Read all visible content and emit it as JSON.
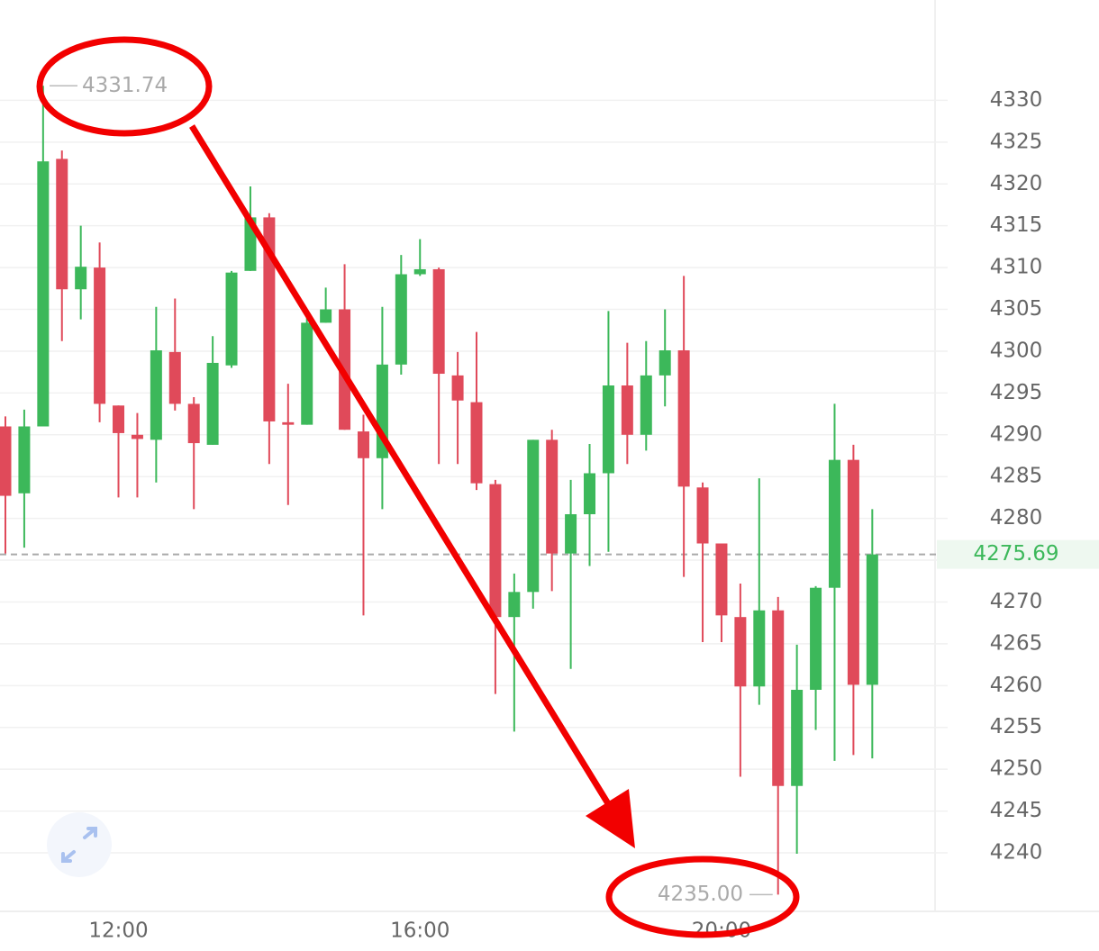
{
  "chart_data": {
    "type": "candlestick",
    "categories": [
      null,
      null,
      null,
      null,
      null,
      null,
      "12:00",
      null,
      null,
      null,
      null,
      null,
      null,
      null,
      null,
      null,
      null,
      null,
      null,
      null,
      null,
      null,
      "16:00",
      null,
      null,
      null,
      null,
      null,
      null,
      null,
      null,
      null,
      null,
      null,
      null,
      null,
      null,
      null,
      "20:00",
      null,
      null,
      null,
      null,
      null,
      null,
      null,
      null
    ],
    "open": [
      4291,
      4283,
      4291,
      4323,
      4307.4,
      4310,
      4293.5,
      4290,
      4289.4,
      4299.9,
      4293.7,
      4288.8,
      4298.3,
      4309.6,
      4316,
      4291.5,
      4291.2,
      4303.4,
      4305,
      4290.4,
      4287.2,
      4298.4,
      4309.2,
      4309.8,
      4297.1,
      4293.9,
      4284.1,
      4268.2,
      4271.2,
      4289.4,
      4275.8,
      4280.5,
      4285.4,
      4295.9,
      4290,
      4297.1,
      4300.1,
      4283.7,
      4277,
      4268.2,
      4259.9,
      4269,
      4248,
      4259.5,
      4271.7,
      4287,
      4260.1
    ],
    "high": [
      4292.2,
      4293,
      4331.74,
      4324,
      4315,
      4313,
      4293.5,
      4292.6,
      4305.3,
      4306.3,
      4294.5,
      4301.8,
      4309.6,
      4319.7,
      4316.5,
      4296.1,
      4305,
      4307.6,
      4310.4,
      4292.4,
      4305.3,
      4311.5,
      4313.4,
      4310,
      4299.9,
      4302.3,
      4284.6,
      4273.4,
      4289.4,
      4290.6,
      4284.6,
      4288.9,
      4304.8,
      4301,
      4301.2,
      4305,
      4309,
      4284.3,
      4277,
      4272.2,
      4284.8,
      4270.6,
      4264.9,
      4271.9,
      4293.7,
      4288.8,
      4281.1
    ],
    "low": [
      4275.8,
      4276.5,
      4291,
      4301.2,
      4303.8,
      4291.5,
      4282.5,
      4282.5,
      4284.3,
      4292.9,
      4281.1,
      4288.8,
      4298,
      4309.6,
      4286.5,
      4281.6,
      4291.2,
      4303.4,
      4290.6,
      4268.4,
      4281.1,
      4297.2,
      4309,
      4286.5,
      4286.5,
      4283.4,
      4259,
      4254.5,
      4269.2,
      4271.3,
      4262,
      4274.3,
      4276,
      4286.5,
      4288.1,
      4293.4,
      4273,
      4265.2,
      4265.2,
      4249.1,
      4257.7,
      4235,
      4239.9,
      4254.7,
      4251,
      4251.7,
      4251.3
    ],
    "close": [
      4282.7,
      4291,
      4322.7,
      4307.4,
      4310.1,
      4293.7,
      4290.2,
      4289.5,
      4300.1,
      4293.7,
      4289,
      4298.6,
      4309.4,
      4316,
      4291.6,
      4291.2,
      4303.4,
      4305,
      4290.6,
      4287.2,
      4298.4,
      4309.2,
      4309.8,
      4297.3,
      4294.1,
      4284.2,
      4268.2,
      4271.2,
      4289.4,
      4275.8,
      4280.5,
      4285.4,
      4295.9,
      4290,
      4297.1,
      4300.1,
      4283.8,
      4277,
      4268.4,
      4259.9,
      4269,
      4248,
      4259.5,
      4271.7,
      4287,
      4260.1,
      4275.69
    ],
    "up_color": "#3cb85a",
    "down_color": "#e04a5a",
    "ylim": [
      4233,
      4342
    ],
    "yticks": [
      4240,
      4245,
      4250,
      4255,
      4260,
      4265,
      4270,
      4275,
      4280,
      4285,
      4290,
      4295,
      4300,
      4305,
      4310,
      4315,
      4320,
      4325,
      4330
    ],
    "grid": true,
    "last_price": 4275.69,
    "max_label": 4331.74,
    "min_label": {
      "value": 4235,
      "label": "4235.00"
    }
  }
}
